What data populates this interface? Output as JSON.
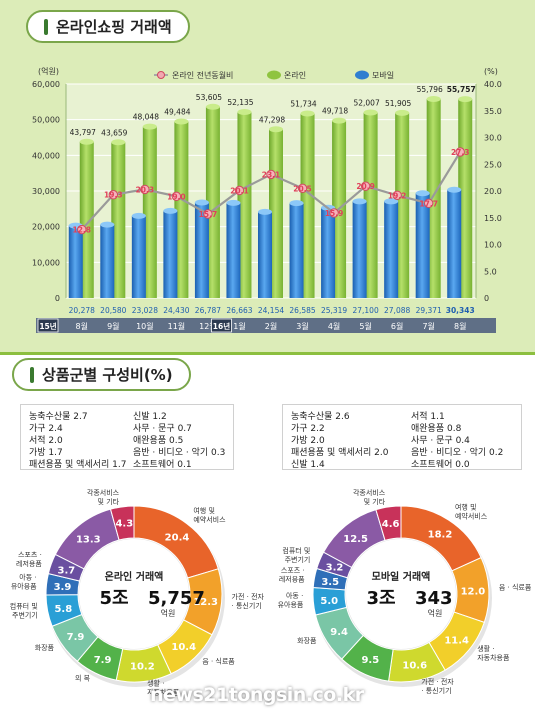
{
  "sections": {
    "top_title": "온라인쇼핑 거래액",
    "bottom_title": "상품군별 구성비(%)"
  },
  "chart_data": [
    {
      "type": "bar",
      "subtype": "grouped-bar-with-line",
      "left_unit": "(억원)",
      "right_unit": "(%)",
      "ylim": [
        0,
        60000
      ],
      "y2lim": [
        0,
        40
      ],
      "left_ticks": [
        "60,000",
        "50,000",
        "40,000",
        "30,000",
        "20,000",
        "10,000",
        "0"
      ],
      "right_ticks": [
        "40.0",
        "35.0",
        "30.0",
        "25.0",
        "20.0",
        "15.0",
        "10.0",
        "5.0",
        "0"
      ],
      "legend": [
        "온라인 전년동월비",
        "온라인",
        "모바일"
      ],
      "year_badges": [
        {
          "label": "15년",
          "index": 0
        },
        {
          "label": "16년",
          "index": 5
        }
      ],
      "categories": [
        "8월",
        "9월",
        "10월",
        "11월",
        "12월",
        "1월",
        "2월",
        "3월",
        "4월",
        "5월",
        "6월",
        "7월",
        "8월"
      ],
      "series": [
        {
          "name": "온라인",
          "color": "#8fc43f",
          "values": [
            43797,
            43659,
            48048,
            49484,
            53605,
            52135,
            47298,
            51734,
            49718,
            52007,
            51905,
            55796,
            55757
          ],
          "labels": [
            "43,797",
            "43,659",
            "48,048",
            "49,484",
            "53,605",
            "52,135",
            "47,298",
            "51,734",
            "49,718",
            "52,007",
            "51,905",
            "55,796",
            "55,757"
          ]
        },
        {
          "name": "모바일",
          "color": "#2f7fd0",
          "values": [
            20278,
            20580,
            23028,
            24430,
            26787,
            26663,
            24154,
            26585,
            25319,
            27100,
            27088,
            29371,
            30343
          ],
          "labels": [
            "20,278",
            "20,580",
            "23,028",
            "24,430",
            "26,787",
            "26,663",
            "24,154",
            "26,585",
            "25,319",
            "27,100",
            "27,088",
            "29,371",
            "30,343"
          ]
        },
        {
          "name": "온라인 전년동월비",
          "color": "#e05a6a",
          "axis": "right",
          "values": [
            12.8,
            19.3,
            20.3,
            19.0,
            15.7,
            20.1,
            23.1,
            20.5,
            15.9,
            20.9,
            19.2,
            17.7,
            27.3
          ],
          "labels": [
            "12.8",
            "19.3",
            "20.3",
            "19.0",
            "15.7",
            "20.1",
            "23.1",
            "20.5",
            "15.9",
            "20.9",
            "19.2",
            "17.7",
            "27.3"
          ]
        }
      ]
    },
    {
      "type": "pie",
      "subtype": "donut",
      "center_line1": "온라인 거래액",
      "center_big1": "5조",
      "center_big2": "5,757",
      "center_unit": "억원",
      "slices": [
        {
          "label": "여행 및 예약서비스",
          "value": 20.4,
          "color": "#e8642a"
        },
        {
          "label": "가전 · 전자 · 통신기기",
          "value": 12.3,
          "color": "#f2a12a"
        },
        {
          "label": "음 · 식료품",
          "value": 10.4,
          "color": "#f2cf2a"
        },
        {
          "label": "생활 · 자동차용품",
          "value": 10.2,
          "color": "#cfd92e"
        },
        {
          "label": "의 복",
          "value": 7.9,
          "color": "#53b24a"
        },
        {
          "label": "화장품",
          "value": 7.9,
          "color": "#7ac6a6"
        },
        {
          "label": "컴퓨터 및 주변기기",
          "value": 5.8,
          "color": "#2a9fd6"
        },
        {
          "label": "아동 · 유아용품",
          "value": 3.9,
          "color": "#2f6fb8"
        },
        {
          "label": "스포츠 · 레저용품",
          "value": 3.7,
          "color": "#6a4fa0"
        },
        {
          "label": "",
          "value": 13.3,
          "color": "#8a5aa5"
        },
        {
          "label": "각종서비스 및 기타",
          "value": 4.3,
          "color": "#c8325a"
        }
      ],
      "legend_box": [
        [
          "농축수산물 2.7",
          "가구 2.4",
          "서적 2.0",
          "가방 1.7",
          "패션용품 및 액세서리 1.7"
        ],
        [
          "신발 1.2",
          "사무 · 문구 0.7",
          "애완용품 0.5",
          "음반 · 비디오 · 악기 0.3",
          "소프트웨어 0.1"
        ]
      ]
    },
    {
      "type": "pie",
      "subtype": "donut",
      "center_line1": "모바일 거래액",
      "center_big1": "3조",
      "center_big2": "343",
      "center_unit": "억원",
      "slices": [
        {
          "label": "여행 및 예약서비스",
          "value": 18.2,
          "color": "#e8642a"
        },
        {
          "label": "음 · 식료품",
          "value": 12.0,
          "color": "#f2a12a"
        },
        {
          "label": "생활 · 자동차용품",
          "value": 11.4,
          "color": "#f2cf2a"
        },
        {
          "label": "가전 · 전자 · 통신기기",
          "value": 10.6,
          "color": "#cfd92e"
        },
        {
          "label": "",
          "value": 9.5,
          "color": "#53b24a"
        },
        {
          "label": "화장품",
          "value": 9.4,
          "color": "#7ac6a6"
        },
        {
          "label": "아동 · 유아용품",
          "value": 5.0,
          "color": "#2a9fd6"
        },
        {
          "label": "스포츠 · 레저용품",
          "value": 3.5,
          "color": "#2f6fb8"
        },
        {
          "label": "컴퓨터 및 주변기기",
          "value": 3.2,
          "color": "#6a4fa0"
        },
        {
          "label": "",
          "value": 12.5,
          "color": "#8a5aa5"
        },
        {
          "label": "각종서비스 및 기타",
          "value": 4.6,
          "color": "#c8325a"
        }
      ],
      "legend_box": [
        [
          "농축수산물 2.6",
          "가구 2.2",
          "가방 2.0",
          "패션용품 및 액세서리 2.0",
          "신발 1.4"
        ],
        [
          "서적 1.1",
          "애완용품 0.8",
          "사무 · 문구 0.4",
          "음반 · 비디오 · 악기 0.2",
          "소프트웨어 0.0"
        ]
      ]
    }
  ],
  "watermark": "news21tongsin.co.kr"
}
